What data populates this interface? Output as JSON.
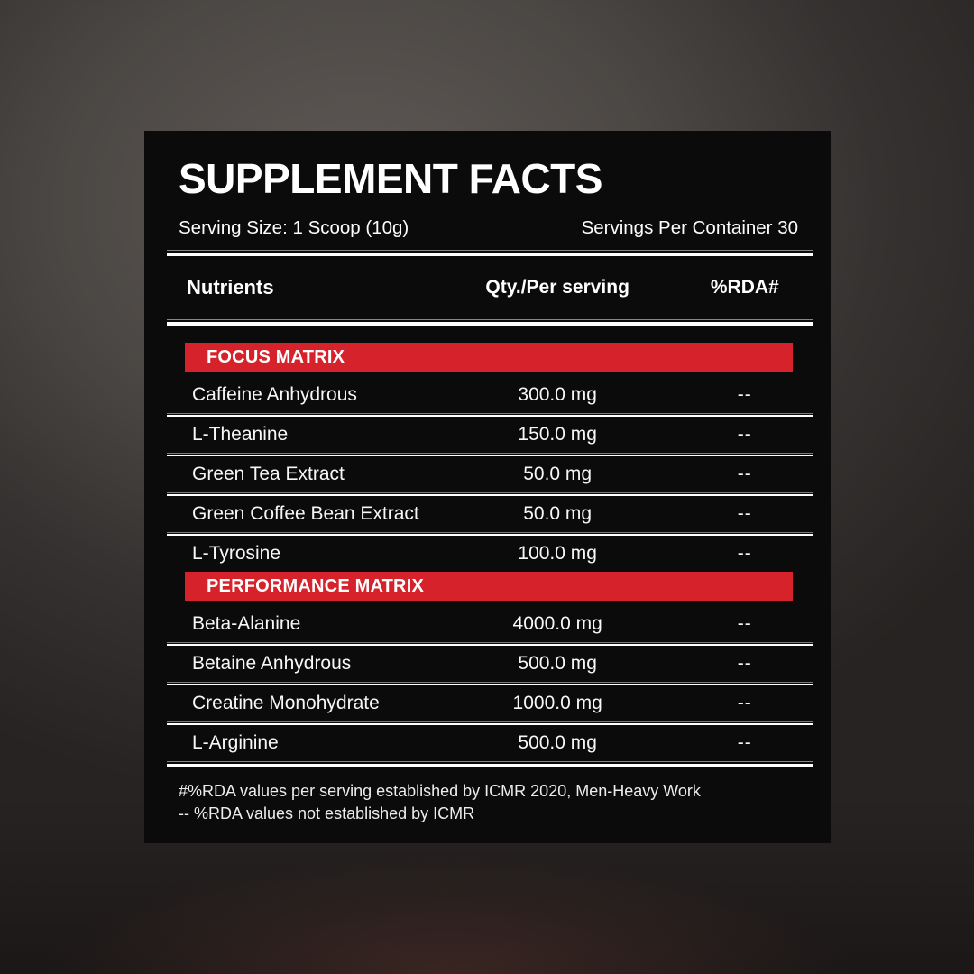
{
  "panel": {
    "title": "SUPPLEMENT FACTS",
    "serving_size": "Serving Size: 1 Scoop (10g)",
    "servings_per_container": "Servings Per Container 30",
    "columns": {
      "nutrient": "Nutrients",
      "qty": "Qty./Per serving",
      "rda": "%RDA#"
    }
  },
  "table": {
    "sections": [
      {
        "name": "FOCUS MATRIX",
        "rows": [
          {
            "nutrient": "Caffeine Anhydrous",
            "qty": "300.0 mg",
            "rda": "--"
          },
          {
            "nutrient": "L-Theanine",
            "qty": "150.0 mg",
            "rda": "--"
          },
          {
            "nutrient": "Green Tea Extract",
            "qty": "50.0 mg",
            "rda": "--"
          },
          {
            "nutrient": "Green Coffee Bean Extract",
            "qty": "50.0 mg",
            "rda": "--"
          },
          {
            "nutrient": "L-Tyrosine",
            "qty": "100.0 mg",
            "rda": "--"
          }
        ]
      },
      {
        "name": "PERFORMANCE MATRIX",
        "rows": [
          {
            "nutrient": "Beta-Alanine",
            "qty": "4000.0 mg",
            "rda": "--"
          },
          {
            "nutrient": "Betaine Anhydrous",
            "qty": "500.0 mg",
            "rda": "--"
          },
          {
            "nutrient": "Creatine Monohydrate",
            "qty": "1000.0 mg",
            "rda": "--"
          },
          {
            "nutrient": "L-Arginine",
            "qty": "500.0 mg",
            "rda": "--"
          }
        ]
      }
    ]
  },
  "footnotes": {
    "line1": "#%RDA values per serving established by ICMR 2020, Men-Heavy Work",
    "line2": "-- %RDA values not established by ICMR"
  },
  "colors": {
    "accent_red": "#d6232b",
    "panel_bg": "#0c0b0b",
    "text": "#ffffff"
  }
}
